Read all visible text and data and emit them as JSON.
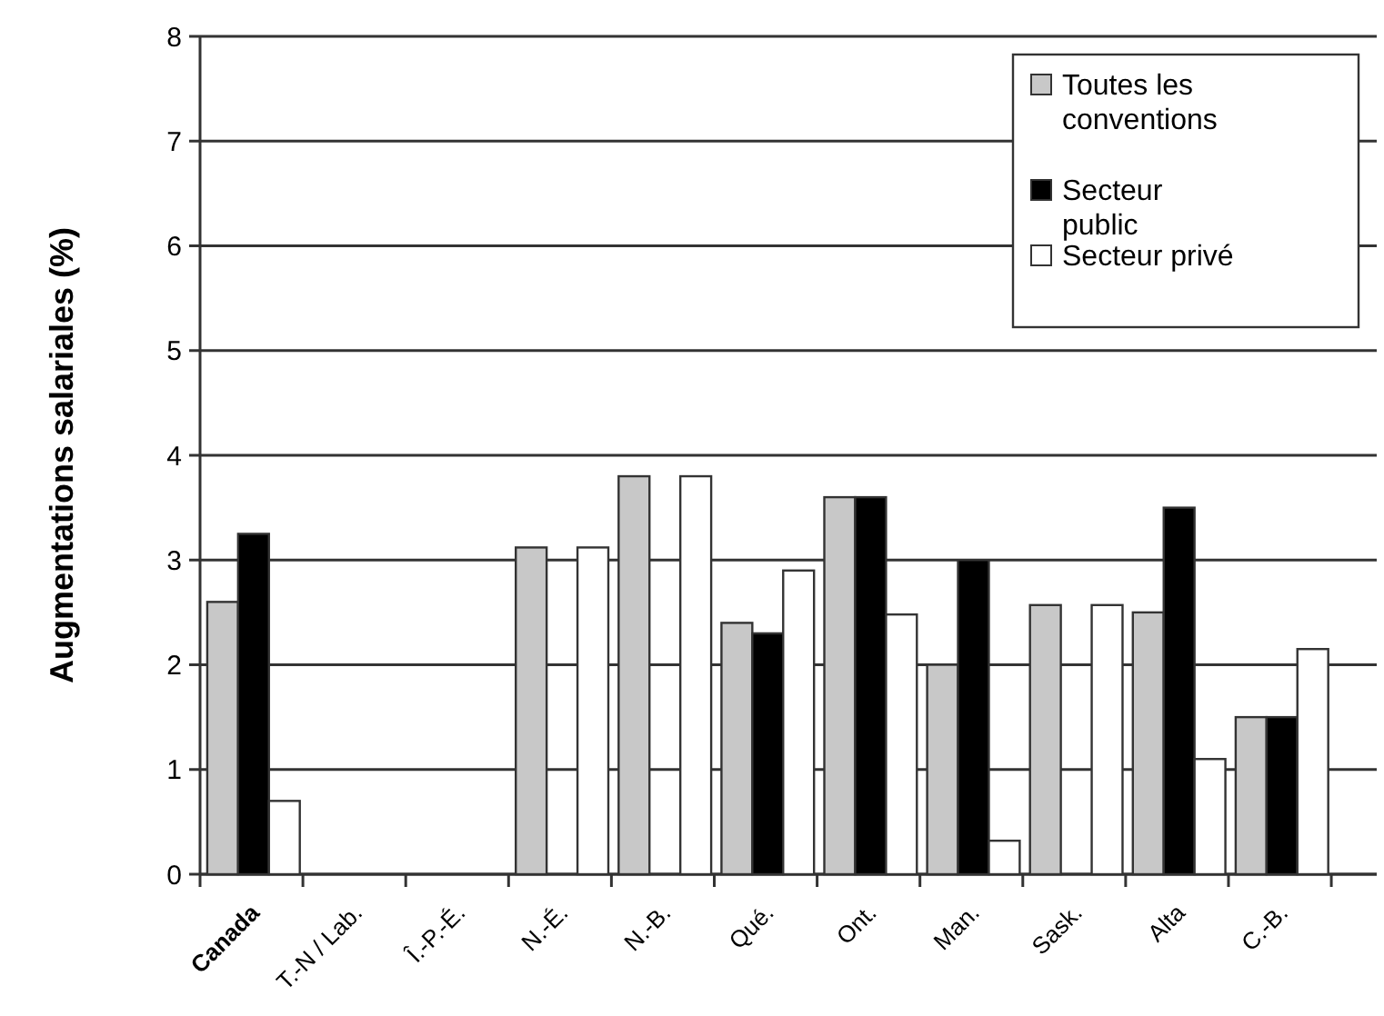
{
  "chart_data": {
    "type": "bar",
    "ylabel": "Augmentations salariales (%)",
    "categories": [
      "Canada",
      "T.-N / Lab.",
      "Î.-P.-É.",
      "N.-É.",
      "N.-B.",
      "Qué.",
      "Ont.",
      "Man.",
      "Sask.",
      "Alta",
      "C.-B."
    ],
    "series": [
      {
        "name": "Toutes les conventions",
        "color": "#c8c8c8",
        "values": [
          2.6,
          null,
          null,
          3.12,
          3.8,
          2.4,
          3.6,
          2.0,
          2.57,
          2.5,
          1.5
        ]
      },
      {
        "name": "Secteur public",
        "color": "#000000",
        "values": [
          3.25,
          null,
          null,
          null,
          null,
          2.3,
          3.6,
          3.0,
          null,
          3.5,
          1.5
        ]
      },
      {
        "name": "Secteur privé",
        "color": "#ffffff",
        "values": [
          0.7,
          null,
          null,
          3.12,
          3.8,
          2.9,
          2.48,
          0.32,
          2.57,
          1.1,
          2.15
        ]
      }
    ],
    "ylim": [
      0,
      8
    ],
    "yticks": [
      0,
      1,
      2,
      3,
      4,
      5,
      6,
      7,
      8
    ],
    "grid": "y",
    "legend": "top right"
  }
}
